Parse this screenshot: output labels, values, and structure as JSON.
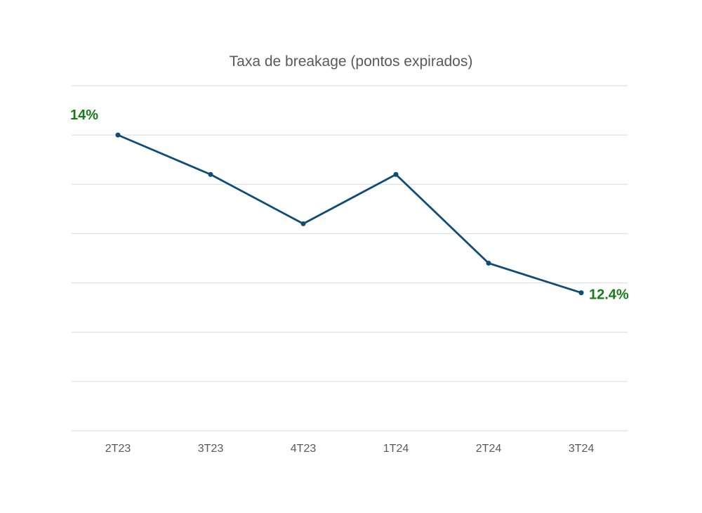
{
  "chart_data": {
    "type": "line",
    "title": "Taxa de breakage (pontos expirados)",
    "xlabel": "",
    "ylabel": "",
    "categories": [
      "2T23",
      "3T23",
      "4T23",
      "1T24",
      "2T24",
      "3T24"
    ],
    "series": [
      {
        "values": [
          14.0,
          13.6,
          13.1,
          13.6,
          12.7,
          12.4
        ]
      }
    ],
    "data_labels": [
      {
        "index": 0,
        "text": "14%"
      },
      {
        "index": 5,
        "text": "12.4%"
      }
    ],
    "ylim": [
      11.0,
      14.5
    ],
    "y_gridlines": [
      11.0,
      11.5,
      12.0,
      12.5,
      13.0,
      13.5,
      14.0
    ],
    "grid": true,
    "y_tick_labels_shown": false,
    "legend": "none",
    "colors": {
      "line": "#0e4d78",
      "data_label": "#1a7a1a",
      "grid": "#d9d9d9",
      "text": "#595959"
    }
  }
}
